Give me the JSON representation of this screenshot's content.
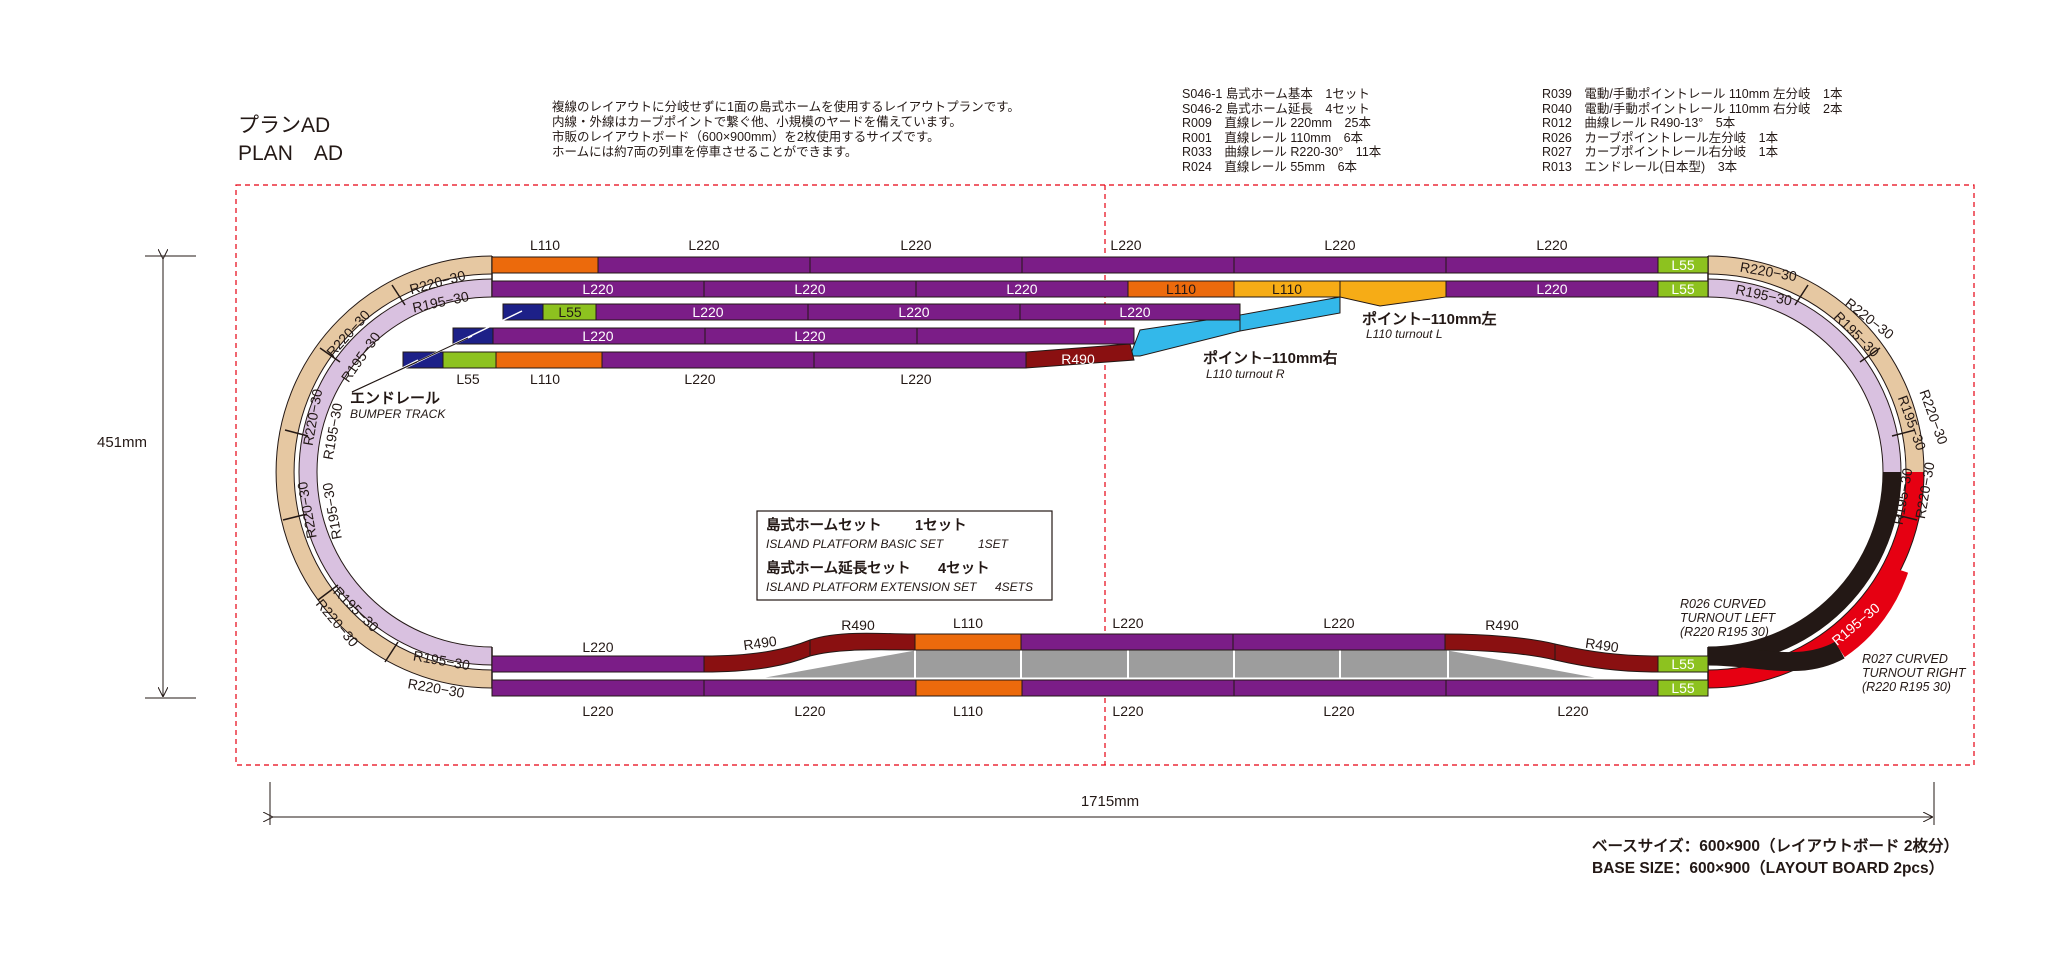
{
  "title": {
    "jp": "プランAD",
    "en": "PLAN　AD"
  },
  "description": [
    "複線のレイアウトに分岐せずに1面の島式ホームを使用するレイアウトプランです。",
    "内線・外線はカーブポイントで繋ぐ他、小規模のヤードを備えています。",
    "市販のレイアウトボード（600×900mm）を2枚使用するサイズです。",
    "ホームには約7両の列車を停車させることができます。"
  ],
  "parts_col1": [
    "S046-1 島式ホーム基本　1セット",
    "S046-2 島式ホーム延長　4セット",
    "R009　直線レール 220mm　25本",
    "R001　直線レール 110mm　6本",
    "R033　曲線レール R220-30°　11本",
    "R024　直線レール 55mm　6本"
  ],
  "parts_col2": [
    "R039　電動/手動ポイントレール 110mm 左分岐　1本",
    "R040　電動/手動ポイントレール 110mm 右分岐　2本",
    "R012　曲線レール R490-13°　5本",
    "R026　カーブポイントレール左分岐　1本",
    "R027　カーブポイントレール右分岐　1本",
    "R013　エンドレール(日本型)　3本"
  ],
  "dims": {
    "height": "451mm",
    "width": "1715mm"
  },
  "colors": {
    "L220": "#7b1d87",
    "L110": "#ec6a0c",
    "L55": "#8dc21f",
    "R490": "#8a1011",
    "R220": "#e6c8a2",
    "R195": "#d9c1e0",
    "turnout_r": "#33b8ea",
    "turnout_l": "#f6ac16",
    "bumper": "#1d2088",
    "platform": "#9d9d9d",
    "curved_l": "#231815",
    "curved_r": "#e60012"
  },
  "labels": {
    "L220": "L220",
    "L110": "L110",
    "L55": "L55",
    "R490": "R490",
    "R220_30": "R220−30",
    "R195_30": "R195−30",
    "turnout_right_jp": "ポイント−110mm右",
    "turnout_right_en": "L110 turnout R",
    "turnout_left_jp": "ポイント−110mm左",
    "turnout_left_en": "L110 turnout L",
    "bumper_jp": "エンドレール",
    "bumper_en": "BUMPER TRACK",
    "r026": [
      "R026 CURVED",
      "TURNOUT LEFT",
      "(R220 R195 30)"
    ],
    "r027": [
      "R027 CURVED",
      "TURNOUT RIGHT",
      "(R220 R195 30)"
    ]
  },
  "legend": {
    "basic_jp": "島式ホームセット",
    "basic_count_jp": "1セット",
    "basic_en": "ISLAND PLATFORM BASIC SET",
    "basic_count_en": "1SET",
    "ext_jp": "島式ホーム延長セット",
    "ext_count_jp": "4セット",
    "ext_en": "ISLAND PLATFORM EXTENSION SET",
    "ext_count_en": "4SETS"
  },
  "base_size": {
    "jp": "ベースサイズ：600×900（レイアウトボード 2枚分）",
    "en": "BASE SIZE：600×900（LAYOUT BOARD 2pcs）"
  }
}
